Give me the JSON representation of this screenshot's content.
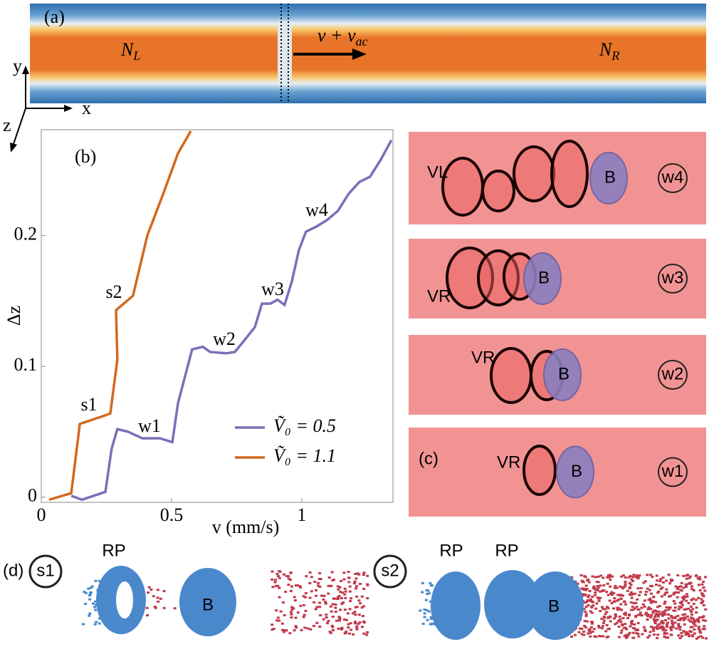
{
  "panel_a": {
    "label": "(a)",
    "left": [
      "N",
      "L"
    ],
    "right": [
      "N",
      "R"
    ],
    "arrow": [
      "v + v",
      "ac"
    ],
    "axes": [
      "y",
      "x",
      "z"
    ]
  },
  "chart_data": {
    "type": "line",
    "label": "(b)",
    "xlabel": "v (mm/s)",
    "ylabel": "Δz",
    "xlim": [
      0,
      1.35
    ],
    "ylim": [
      -0.004,
      0.281
    ],
    "xticks": [
      0,
      0.5,
      1
    ],
    "yticks": [
      0,
      0.1,
      0.2
    ],
    "series": [
      {
        "name": "Ṽ₀ = 0.5",
        "color": "#7b6fb8",
        "x": [
          0.115,
          0.156,
          0.246,
          0.27,
          0.292,
          0.333,
          0.388,
          0.456,
          0.503,
          0.525,
          0.579,
          0.62,
          0.648,
          0.71,
          0.743,
          0.784,
          0.82,
          0.847,
          0.88,
          0.907,
          0.934,
          0.962,
          0.989,
          1.016,
          1.057,
          1.098,
          1.139,
          1.18,
          1.221,
          1.262,
          1.303,
          1.344
        ],
        "values": [
          0.001,
          -0.002,
          0.004,
          0.037,
          0.052,
          0.05,
          0.045,
          0.045,
          0.042,
          0.072,
          0.113,
          0.115,
          0.111,
          0.11,
          0.111,
          0.121,
          0.13,
          0.148,
          0.148,
          0.151,
          0.147,
          0.165,
          0.189,
          0.203,
          0.207,
          0.212,
          0.219,
          0.232,
          0.241,
          0.245,
          0.258,
          0.273
        ]
      },
      {
        "name": "Ṽ₀ = 1.1",
        "color": "#d2691e",
        "x": [
          0.03,
          0.115,
          0.148,
          0.238,
          0.265,
          0.292,
          0.287,
          0.352,
          0.407,
          0.47,
          0.525,
          0.574
        ],
        "values": [
          -0.002,
          0.003,
          0.056,
          0.062,
          0.064,
          0.105,
          0.143,
          0.154,
          0.2,
          0.233,
          0.263,
          0.28
        ]
      }
    ],
    "annotations": [
      "s1",
      "s2",
      "w1",
      "w2",
      "w3",
      "w4"
    ]
  },
  "panel_c": {
    "label": "(c)",
    "tubes": [
      {
        "vortex": "VL",
        "ball": "B",
        "tag": "w4"
      },
      {
        "vortex": "VR",
        "ball": "B",
        "tag": "w3"
      },
      {
        "vortex": "VR",
        "ball": "B",
        "tag": "w2"
      },
      {
        "vortex": "VR",
        "ball": "B",
        "tag": "w1"
      }
    ]
  },
  "panel_d": {
    "label": "(d)",
    "left": {
      "tag": "s1",
      "labels": [
        "RP",
        "B"
      ]
    },
    "right": {
      "tag": "s2",
      "labels": [
        "RP",
        "RP",
        "B"
      ]
    }
  }
}
